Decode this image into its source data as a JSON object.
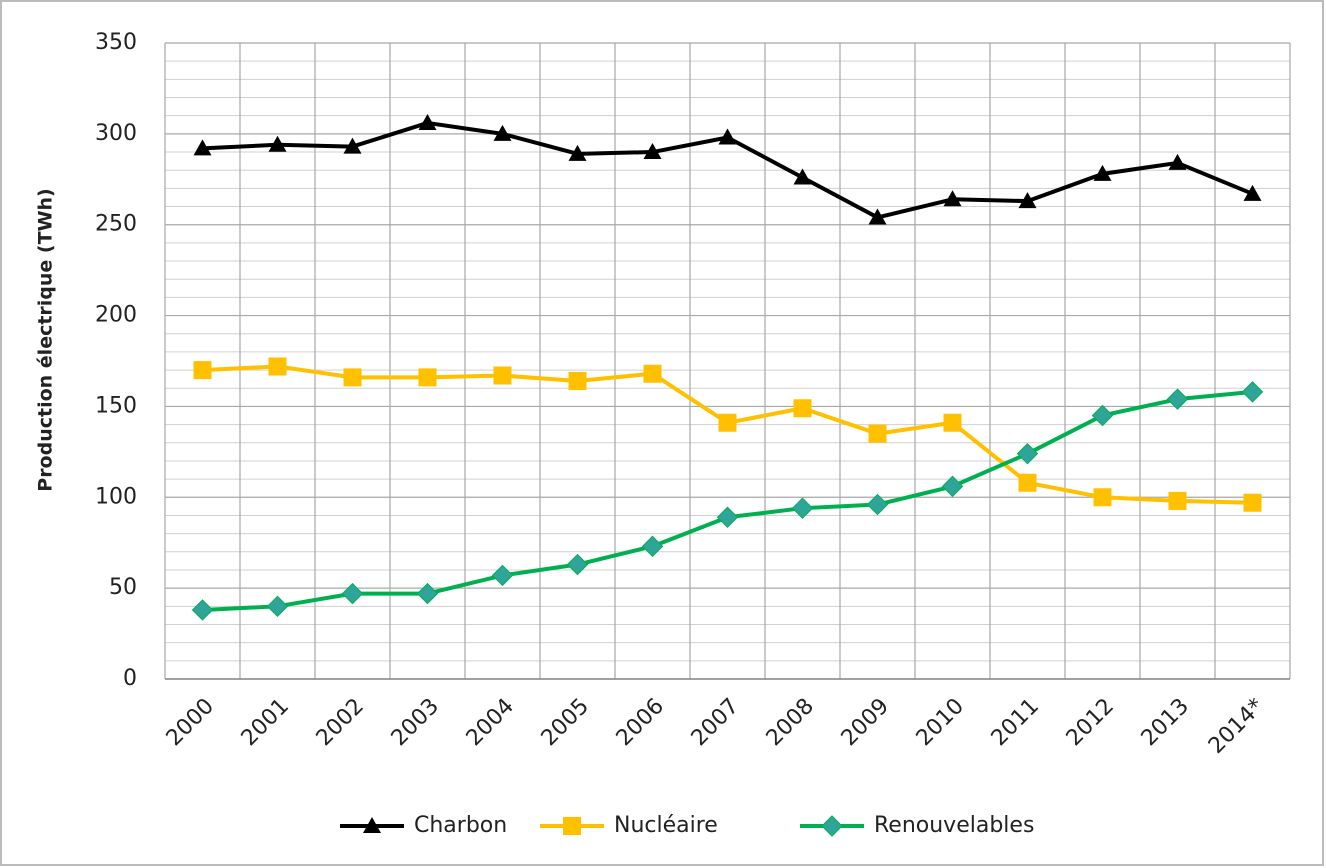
{
  "chart_data": {
    "type": "line",
    "y_label": "Production électrique (TWh)",
    "categories": [
      "2000",
      "2001",
      "2002",
      "2003",
      "2004",
      "2005",
      "2006",
      "2007",
      "2008",
      "2009",
      "2010",
      "2011",
      "2012",
      "2013",
      "2014*"
    ],
    "series": [
      {
        "name": "Charbon",
        "color": "#000000",
        "marker": "triangle",
        "values": [
          292,
          294,
          293,
          306,
          300,
          289,
          290,
          298,
          276,
          254,
          264,
          263,
          278,
          284,
          267
        ]
      },
      {
        "name": "Nucléaire",
        "color": "#ffc000",
        "marker": "square",
        "values": [
          170,
          172,
          166,
          166,
          167,
          164,
          168,
          141,
          149,
          135,
          141,
          108,
          100,
          98,
          97
        ]
      },
      {
        "name": "Renouvelables",
        "color": "#00b050",
        "marker": "diamond",
        "values": [
          38,
          40,
          47,
          47,
          57,
          63,
          73,
          89,
          94,
          96,
          106,
          124,
          145,
          154,
          158
        ]
      }
    ],
    "ylim": [
      0,
      350
    ],
    "yticks": [
      0,
      50,
      100,
      150,
      200,
      250,
      300,
      350
    ],
    "grid": true,
    "legend": "bottom"
  }
}
